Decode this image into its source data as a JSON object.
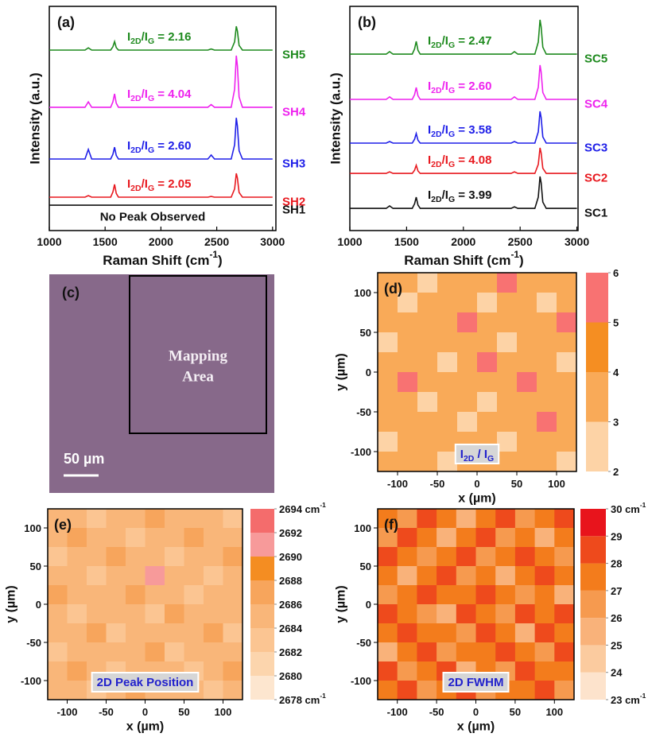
{
  "chart_data": [
    {
      "type": "line",
      "panel_label": "(a)",
      "ylabel": "Intensity (a.u.)",
      "xlabel": [
        {
          "text": "Raman Shift (cm"
        },
        {
          "text": "-1",
          "sup": true
        },
        {
          "text": ")"
        }
      ],
      "xlim": [
        1000,
        3030
      ],
      "ylim": [
        0,
        10
      ],
      "xticks": [
        1000,
        1500,
        2000,
        2500,
        3000
      ],
      "annotation": "No Peak Observed",
      "ratio_label": [
        {
          "text": "I"
        },
        {
          "text": "2D",
          "sub": true
        },
        {
          "text": "/I"
        },
        {
          "text": "G",
          "sub": true
        },
        {
          "text": " = "
        }
      ],
      "x": [
        1000,
        1320,
        1350,
        1380,
        1550,
        1570,
        1585,
        1600,
        1620,
        2420,
        2450,
        2480,
        2630,
        2660,
        2675,
        2685,
        2700,
        2730,
        3000
      ],
      "series": [
        {
          "name": "SH1",
          "color": "#111111",
          "values": [
            1.13,
            1.13,
            1.13,
            1.13,
            1.13,
            1.13,
            1.13,
            1.13,
            1.13,
            1.13,
            1.13,
            1.13,
            1.13,
            1.13,
            1.13,
            1.13,
            1.13,
            1.13,
            1.13
          ]
        },
        {
          "name": "SH2",
          "color": "#e8191f",
          "ratio": 2.05,
          "values": [
            1.49,
            1.49,
            1.56,
            1.49,
            1.49,
            1.72,
            2.06,
            1.66,
            1.49,
            1.49,
            1.52,
            1.49,
            1.49,
            1.86,
            2.55,
            2.34,
            1.7,
            1.49,
            1.49
          ]
        },
        {
          "name": "SH3",
          "color": "#1f1fe8",
          "ratio": {
            "value": 2.6,
            "label": "2.60"
          },
          "values": [
            3.19,
            3.19,
            3.62,
            3.19,
            3.19,
            3.4,
            3.72,
            3.35,
            3.19,
            3.19,
            3.37,
            3.19,
            3.19,
            3.83,
            5.03,
            4.66,
            3.56,
            3.19,
            3.19
          ]
        },
        {
          "name": "SH4",
          "color": "#ee22ee",
          "ratio": 4.04,
          "values": [
            5.5,
            5.5,
            5.74,
            5.5,
            5.5,
            5.74,
            6.1,
            5.68,
            5.5,
            5.5,
            5.62,
            5.5,
            5.5,
            6.31,
            7.8,
            7.34,
            5.96,
            5.5,
            5.5
          ]
        },
        {
          "name": "SH5",
          "color": "#1e8a1e",
          "ratio": 2.16,
          "values": [
            8.05,
            8.05,
            8.15,
            8.05,
            8.05,
            8.2,
            8.43,
            8.16,
            8.05,
            8.05,
            8.1,
            8.05,
            8.05,
            8.42,
            9.11,
            8.9,
            8.26,
            8.05,
            8.05
          ]
        }
      ]
    },
    {
      "type": "line",
      "panel_label": "(b)",
      "ylabel": "Intensity (a.u.)",
      "xlabel": [
        {
          "text": "Raman Shift (cm"
        },
        {
          "text": "-1",
          "sup": true
        },
        {
          "text": ")"
        }
      ],
      "xlim": [
        1000,
        3010
      ],
      "ylim": [
        0,
        10
      ],
      "xticks": [
        1000,
        1500,
        2000,
        2500,
        3000
      ],
      "ratio_label": [
        {
          "text": "I"
        },
        {
          "text": "2D",
          "sub": true
        },
        {
          "text": "/I"
        },
        {
          "text": "G",
          "sub": true
        },
        {
          "text": " = "
        }
      ],
      "x": [
        1000,
        1320,
        1350,
        1380,
        1550,
        1570,
        1585,
        1600,
        1620,
        2420,
        2450,
        2480,
        2630,
        2660,
        2675,
        2685,
        2700,
        2730,
        3000
      ],
      "series": [
        {
          "name": "SC1",
          "color": "#111111",
          "ratio": 3.99,
          "values": [
            0.99,
            0.99,
            1.1,
            0.99,
            0.99,
            1.19,
            1.49,
            1.14,
            0.99,
            0.99,
            1.06,
            0.99,
            0.99,
            1.49,
            2.41,
            2.13,
            1.27,
            0.99,
            0.99
          ]
        },
        {
          "name": "SC2",
          "color": "#e8191f",
          "ratio": 4.08,
          "values": [
            2.55,
            2.55,
            2.62,
            2.55,
            2.55,
            2.69,
            2.91,
            2.66,
            2.55,
            2.55,
            2.62,
            2.55,
            2.55,
            2.95,
            3.69,
            3.46,
            2.78,
            2.55,
            2.55
          ]
        },
        {
          "name": "SC3",
          "color": "#1f1fe8",
          "ratio": 3.58,
          "values": [
            3.9,
            3.9,
            3.97,
            3.9,
            3.9,
            4.07,
            4.33,
            4.03,
            3.9,
            3.9,
            3.97,
            3.9,
            3.9,
            4.4,
            5.32,
            5.04,
            4.18,
            3.9,
            3.9
          ]
        },
        {
          "name": "SC4",
          "color": "#ee22ee",
          "ratio": {
            "value": 2.6,
            "label": "2.60"
          },
          "values": [
            5.85,
            5.85,
            5.96,
            5.85,
            5.85,
            6.06,
            6.38,
            6.01,
            5.85,
            5.85,
            5.96,
            5.85,
            5.85,
            6.39,
            7.38,
            7.07,
            6.16,
            5.85,
            5.85
          ]
        },
        {
          "name": "SC5",
          "color": "#1e8a1e",
          "ratio": 2.47,
          "values": [
            7.87,
            7.87,
            7.98,
            7.87,
            7.87,
            8.1,
            8.44,
            8.04,
            7.87,
            7.87,
            7.98,
            7.87,
            7.87,
            8.41,
            9.4,
            9.09,
            8.18,
            7.87,
            7.87
          ]
        }
      ]
    },
    {
      "type": "heatmap",
      "panel_label": "(d)",
      "xlabel": "x (µm)",
      "ylabel": "y (µm)",
      "xlim": [
        -125,
        125
      ],
      "ylim": [
        -125,
        125
      ],
      "xticks": [
        -100,
        -50,
        0,
        50,
        100
      ],
      "yticks": [
        -100,
        -50,
        0,
        50,
        100
      ],
      "inset_label": [
        {
          "text": "I"
        },
        {
          "text": "2D",
          "sub": true
        },
        {
          "text": " / I"
        },
        {
          "text": "G",
          "sub": true
        }
      ],
      "colorbar": {
        "ticks": [
          2,
          3,
          4,
          5,
          6
        ],
        "colors": [
          "#fdd3a6",
          "#f9aa58",
          "#f58e22",
          "#f87272"
        ]
      },
      "x": [
        -112.5,
        -87.5,
        -62.5,
        -37.5,
        -12.5,
        12.5,
        37.5,
        62.5,
        87.5,
        112.5
      ],
      "y": [
        112.5,
        87.5,
        62.5,
        37.5,
        12.5,
        -12.5,
        -37.5,
        -62.5,
        -87.5,
        -112.5
      ],
      "z": [
        [
          3.5,
          3.5,
          2.6,
          3.5,
          3.5,
          3.5,
          5.4,
          3.5,
          3.5,
          3.5
        ],
        [
          3.5,
          2.6,
          3.5,
          3.5,
          3.5,
          2.6,
          3.5,
          3.5,
          2.6,
          3.5
        ],
        [
          3.5,
          3.5,
          3.5,
          3.5,
          5.4,
          3.5,
          3.5,
          3.5,
          3.5,
          5.4
        ],
        [
          2.6,
          3.5,
          3.5,
          3.5,
          3.5,
          3.5,
          2.6,
          3.5,
          3.5,
          3.5
        ],
        [
          3.5,
          3.5,
          3.5,
          2.6,
          3.5,
          5.4,
          3.5,
          3.5,
          3.5,
          2.6
        ],
        [
          3.5,
          5.4,
          3.5,
          3.5,
          3.5,
          3.5,
          3.5,
          5.4,
          3.5,
          3.5
        ],
        [
          3.5,
          3.5,
          2.6,
          3.5,
          3.5,
          2.6,
          3.5,
          3.5,
          3.5,
          3.5
        ],
        [
          3.5,
          3.5,
          3.5,
          3.5,
          2.6,
          3.5,
          3.5,
          3.5,
          5.4,
          3.5
        ],
        [
          2.6,
          3.5,
          3.5,
          3.5,
          3.5,
          3.5,
          2.6,
          3.5,
          3.5,
          3.5
        ],
        [
          3.5,
          3.5,
          3.5,
          2.6,
          3.5,
          3.5,
          3.5,
          3.5,
          3.5,
          2.6
        ]
      ]
    },
    {
      "type": "heatmap",
      "panel_label": "(e)",
      "xlabel": "x (µm)",
      "ylabel": "y (µm)",
      "xlim": [
        -125,
        125
      ],
      "ylim": [
        -125,
        125
      ],
      "xticks": [
        -100,
        -50,
        0,
        50,
        100
      ],
      "yticks": [
        -100,
        -50,
        0,
        50,
        100
      ],
      "inset_label": [
        {
          "text": "2D Peak Position"
        }
      ],
      "colorbar": {
        "ticks": [
          {
            "value": 2678,
            "label": "2678 cm",
            "sup": "-1"
          },
          2680,
          2682,
          2684,
          2686,
          2688,
          2690,
          2692,
          {
            "value": 2694,
            "label": "2694 cm",
            "sup": "-1"
          }
        ],
        "colors": [
          "#fde6cf",
          "#fcd5ad",
          "#fbc592",
          "#f9b679",
          "#f7a55c",
          "#f48d22",
          "#f79a9a",
          "#f46c6c"
        ]
      },
      "x": [
        -112.5,
        -87.5,
        -62.5,
        -37.5,
        -12.5,
        12.5,
        37.5,
        62.5,
        87.5,
        112.5
      ],
      "y": [
        112.5,
        87.5,
        62.5,
        37.5,
        12.5,
        -12.5,
        -37.5,
        -62.5,
        -87.5,
        -112.5
      ],
      "z": [
        [
          2685,
          2685,
          2683,
          2685,
          2685,
          2687,
          2685,
          2685,
          2685,
          2683
        ],
        [
          2685,
          2687,
          2685,
          2685,
          2683,
          2685,
          2685,
          2687,
          2685,
          2685
        ],
        [
          2683,
          2685,
          2685,
          2687,
          2685,
          2685,
          2683,
          2685,
          2685,
          2687
        ],
        [
          2685,
          2685,
          2683,
          2685,
          2685,
          2691,
          2685,
          2685,
          2683,
          2685
        ],
        [
          2687,
          2685,
          2685,
          2685,
          2687,
          2685,
          2685,
          2683,
          2685,
          2685
        ],
        [
          2685,
          2683,
          2685,
          2685,
          2685,
          2683,
          2687,
          2685,
          2685,
          2685
        ],
        [
          2685,
          2685,
          2687,
          2683,
          2685,
          2685,
          2685,
          2685,
          2687,
          2683
        ],
        [
          2683,
          2685,
          2685,
          2685,
          2685,
          2687,
          2683,
          2685,
          2685,
          2685
        ],
        [
          2685,
          2687,
          2685,
          2683,
          2685,
          2685,
          2685,
          2683,
          2685,
          2687
        ],
        [
          2685,
          2685,
          2683,
          2685,
          2687,
          2685,
          2685,
          2685,
          2683,
          2685
        ]
      ]
    },
    {
      "type": "heatmap",
      "panel_label": "(f)",
      "xlabel": "x (µm)",
      "ylabel": "y (µm)",
      "xlim": [
        -125,
        125
      ],
      "ylim": [
        -125,
        125
      ],
      "xticks": [
        -100,
        -50,
        0,
        50,
        100
      ],
      "yticks": [
        -100,
        -50,
        0,
        50,
        100
      ],
      "inset_label": [
        {
          "text": "2D FWHM"
        }
      ],
      "colorbar": {
        "ticks": [
          {
            "value": 23,
            "label": "23 cm",
            "sup": "-1"
          },
          24,
          25,
          26,
          27,
          28,
          29,
          {
            "value": 30,
            "label": "30 cm",
            "sup": "-1"
          }
        ],
        "colors": [
          "#fde3cc",
          "#fbcb9f",
          "#f9b27a",
          "#f69a4f",
          "#f37c1c",
          "#ee4a1c",
          "#e8141c"
        ]
      },
      "x": [
        -112.5,
        -87.5,
        -62.5,
        -37.5,
        -12.5,
        12.5,
        37.5,
        62.5,
        87.5,
        112.5
      ],
      "y": [
        112.5,
        87.5,
        62.5,
        37.5,
        12.5,
        -12.5,
        -37.5,
        -62.5,
        -87.5,
        -112.5
      ],
      "z": [
        [
          27.5,
          26.5,
          28.5,
          27.5,
          25.5,
          27.5,
          28.5,
          26.5,
          27.5,
          28.5
        ],
        [
          26.5,
          28.5,
          27.5,
          25.5,
          27.5,
          28.5,
          26.5,
          27.5,
          25.5,
          27.5
        ],
        [
          28.5,
          27.5,
          26.5,
          27.5,
          28.5,
          26.5,
          27.5,
          28.5,
          27.5,
          26.5
        ],
        [
          27.5,
          25.5,
          27.5,
          28.5,
          26.5,
          27.5,
          25.5,
          27.5,
          28.5,
          27.5
        ],
        [
          26.5,
          27.5,
          28.5,
          27.5,
          27.5,
          28.5,
          27.5,
          26.5,
          27.5,
          25.5
        ],
        [
          28.5,
          27.5,
          26.5,
          25.5,
          28.5,
          27.5,
          26.5,
          28.5,
          27.5,
          28.5
        ],
        [
          27.5,
          28.5,
          27.5,
          27.5,
          26.5,
          28.5,
          27.5,
          25.5,
          28.5,
          27.5
        ],
        [
          25.5,
          27.5,
          28.5,
          26.5,
          27.5,
          27.5,
          28.5,
          27.5,
          26.5,
          28.5
        ],
        [
          28.5,
          26.5,
          27.5,
          28.5,
          25.5,
          27.5,
          26.5,
          28.5,
          27.5,
          27.5
        ],
        [
          27.5,
          28.5,
          26.5,
          27.5,
          28.5,
          26.5,
          27.5,
          27.5,
          28.5,
          26.5
        ]
      ]
    }
  ],
  "image_panel": {
    "panel_label": "(c)",
    "area_label": [
      "Mapping",
      "Area"
    ],
    "scale_label": "50 µm"
  }
}
